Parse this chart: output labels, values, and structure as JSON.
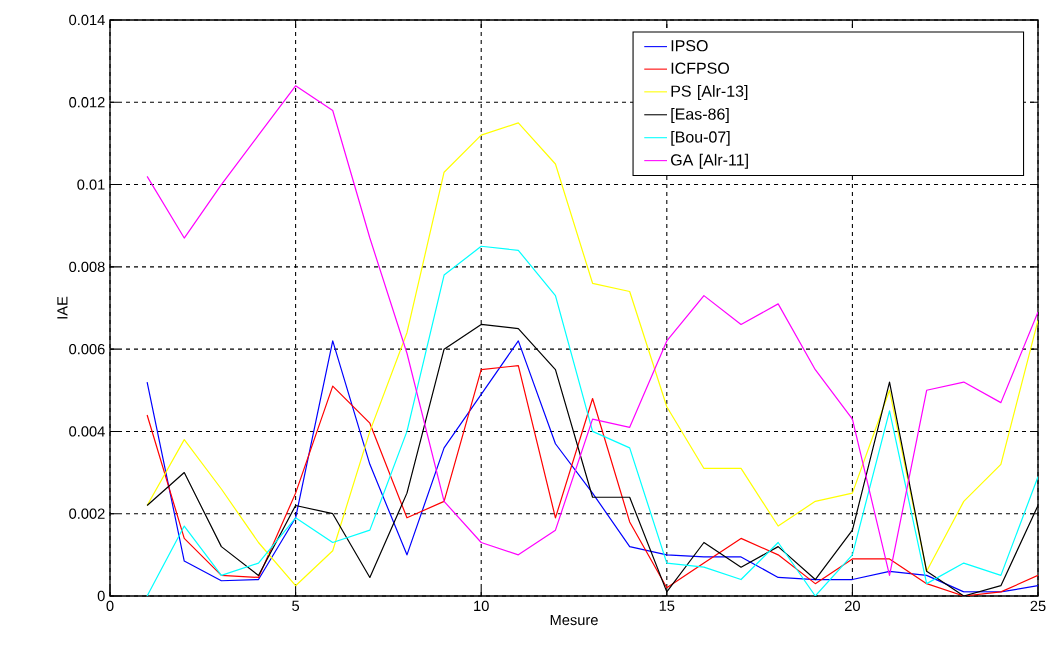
{
  "chart_data": {
    "type": "line",
    "xlabel": "Mesure",
    "ylabel": "IAE",
    "x": [
      1,
      2,
      3,
      4,
      5,
      6,
      7,
      8,
      9,
      10,
      11,
      12,
      13,
      14,
      15,
      16,
      17,
      18,
      19,
      20,
      21,
      22,
      23,
      24,
      25
    ],
    "series": [
      {
        "name": "IPSO",
        "color": "#0000ff",
        "values": [
          0.0052,
          0.00085,
          0.00037,
          0.0004,
          0.0019,
          0.0062,
          0.0032,
          0.001,
          0.0036,
          0.0049,
          0.0062,
          0.0037,
          0.0025,
          0.0012,
          0.001,
          0.00095,
          0.00095,
          0.00045,
          0.0004,
          0.0004,
          0.0006,
          0.0005,
          0.0001,
          0.0001,
          0.00025
        ]
      },
      {
        "name": "ICFPSO",
        "color": "#ff0000",
        "values": [
          0.0044,
          0.0014,
          0.0005,
          0.00045,
          0.0025,
          0.0051,
          0.0042,
          0.0019,
          0.0023,
          0.0055,
          0.0056,
          0.0019,
          0.0048,
          0.0018,
          0.0002,
          0.0008,
          0.0014,
          0.001,
          0.0003,
          0.0009,
          0.0009,
          0.0003,
          0.0,
          0.0001,
          0.0005
        ]
      },
      {
        "name": "PS  [Alr-13]",
        "color": "#ffff00",
        "values": [
          0.0022,
          0.0038,
          0.0026,
          0.0013,
          0.00025,
          0.0011,
          0.004,
          0.0064,
          0.0103,
          0.0112,
          0.0115,
          0.0105,
          0.0076,
          0.0074,
          0.0046,
          0.0031,
          0.0031,
          0.0017,
          0.0023,
          0.0025,
          0.005,
          0.0006,
          0.0023,
          0.0032,
          0.0067
        ]
      },
      {
        "name": "[Eas-86]",
        "color": "#000000",
        "values": [
          0.0022,
          0.003,
          0.0012,
          0.0005,
          0.0022,
          0.002,
          0.00045,
          0.0025,
          0.006,
          0.0066,
          0.0065,
          0.0055,
          0.0024,
          0.0024,
          0.0001,
          0.0013,
          0.0007,
          0.0012,
          0.0004,
          0.0016,
          0.0052,
          0.0006,
          0.0,
          0.00025,
          0.0022
        ]
      },
      {
        "name": "[Bou-07]",
        "color": "#00ffff",
        "values": [
          0.0,
          0.0017,
          0.0005,
          0.0008,
          0.0019,
          0.0013,
          0.0016,
          0.004,
          0.0078,
          0.0085,
          0.0084,
          0.0073,
          0.004,
          0.0036,
          0.0008,
          0.0007,
          0.0004,
          0.0013,
          0.0,
          0.001,
          0.0045,
          0.0003,
          0.0008,
          0.0005,
          0.0029
        ]
      },
      {
        "name": "GA  [Alr-11]",
        "color": "#ff00ff",
        "values": [
          0.0102,
          0.0087,
          0.01,
          0.0112,
          0.0124,
          0.0118,
          0.0087,
          0.0059,
          0.0023,
          0.0013,
          0.001,
          0.0016,
          0.0043,
          0.0041,
          0.0062,
          0.0073,
          0.0066,
          0.0071,
          0.0055,
          0.0043,
          0.0005,
          0.005,
          0.0052,
          0.0047,
          0.0069
        ]
      }
    ],
    "xlim": [
      0,
      25
    ],
    "xticks": [
      0,
      5,
      10,
      15,
      20,
      25
    ],
    "ylim": [
      0,
      0.014
    ],
    "yticks": [
      0,
      0.002,
      0.004,
      0.006,
      0.008,
      0.01,
      0.012,
      0.014
    ],
    "grid": true,
    "legend": "top right",
    "line_style": "solid"
  }
}
